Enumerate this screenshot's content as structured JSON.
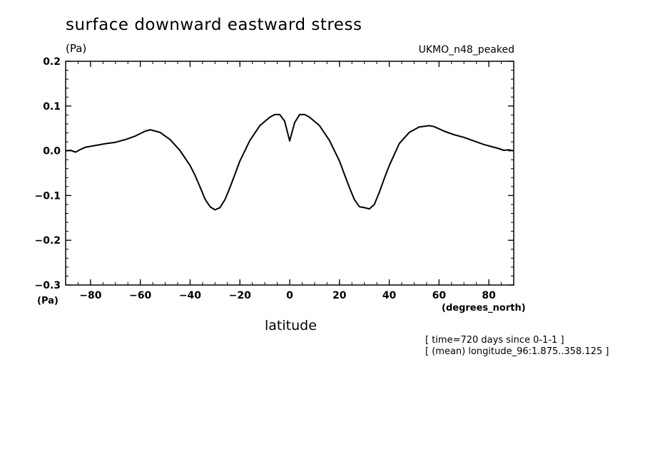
{
  "chart_data": {
    "type": "line",
    "title": "surface downward eastward stress",
    "y_unit_top": "(Pa)",
    "y_unit_bottom": "(Pa)",
    "dataset_label": "UKMO_n48_peaked",
    "xlabel": "latitude",
    "x_unit": "(degrees_north)",
    "footnotes": [
      "[ time=720 days since 0-1-1 ]",
      "[ (mean) longitude_96:1.875..358.125 ]"
    ],
    "xlim": [
      -90,
      90
    ],
    "ylim": [
      -0.3,
      0.2
    ],
    "x_ticks": [
      -80,
      -60,
      -40,
      -20,
      0,
      20,
      40,
      60,
      80
    ],
    "x_tick_labels": [
      "−80",
      "−60",
      "−40",
      "−20",
      "0",
      "20",
      "40",
      "60",
      "80"
    ],
    "y_ticks": [
      -0.3,
      -0.2,
      -0.1,
      0.0,
      0.1,
      0.2
    ],
    "y_tick_labels": [
      "−0.3",
      "−0.2",
      "−0.1",
      "0.0",
      "0.1",
      "0.2"
    ],
    "grid": false,
    "series": [
      {
        "x": [
          -90,
          -88,
          -86,
          -84,
          -82,
          -78,
          -74,
          -70,
          -66,
          -62,
          -58,
          -56,
          -52,
          -48,
          -44,
          -40,
          -38,
          -36,
          -34,
          -32,
          -30,
          -28,
          -26,
          -24,
          -22,
          -20,
          -16,
          -12,
          -8,
          -6,
          -4,
          -2,
          0,
          2,
          4,
          6,
          8,
          12,
          16,
          20,
          22,
          24,
          26,
          28,
          30,
          32,
          34,
          36,
          38,
          40,
          44,
          48,
          52,
          56,
          58,
          62,
          66,
          70,
          74,
          78,
          82,
          84,
          86,
          88,
          90
        ],
        "y": [
          0.0,
          0.001,
          -0.003,
          0.003,
          0.008,
          0.012,
          0.016,
          0.019,
          0.025,
          0.033,
          0.044,
          0.047,
          0.041,
          0.025,
          0.0,
          -0.033,
          -0.055,
          -0.081,
          -0.108,
          -0.125,
          -0.132,
          -0.127,
          -0.109,
          -0.082,
          -0.053,
          -0.023,
          0.023,
          0.056,
          0.075,
          0.081,
          0.081,
          0.066,
          0.022,
          0.063,
          0.081,
          0.081,
          0.075,
          0.056,
          0.023,
          -0.023,
          -0.053,
          -0.082,
          -0.109,
          -0.125,
          -0.127,
          -0.13,
          -0.12,
          -0.093,
          -0.062,
          -0.033,
          0.016,
          0.041,
          0.053,
          0.056,
          0.054,
          0.044,
          0.036,
          0.03,
          0.022,
          0.014,
          0.008,
          0.005,
          0.001,
          0.002,
          0.0
        ]
      }
    ]
  }
}
